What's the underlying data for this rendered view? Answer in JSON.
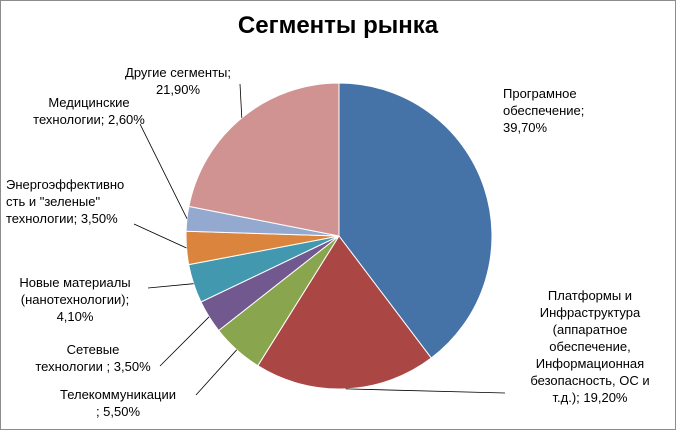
{
  "chart_data": {
    "type": "pie",
    "title": "Сегменты рынка",
    "slices": [
      {
        "name": "Програмное обеспечение",
        "value": 39.7,
        "label": "Програмное\nобеспечение;\n39,70%",
        "color": "#4572a7"
      },
      {
        "name": "Платформы и Инфраструктура (аппаратное обеспечение, Информационная безопасность, ОС и т.д.)",
        "value": 19.2,
        "label": "Платформы и\nИнфраструктура\n(аппаратное\nобеспечение,\nИнформационная\nбезопасность, ОС и\nт.д.); 19,20%",
        "color": "#aa4643"
      },
      {
        "name": "Телекоммуникации",
        "value": 5.5,
        "label": "Телекоммуникации\n; 5,50%",
        "color": "#89a54e"
      },
      {
        "name": "Сетевые технологии",
        "value": 3.5,
        "label": "Сетевые\nтехнологии ; 3,50%",
        "color": "#71588f"
      },
      {
        "name": "Новые материалы (нанотехнологии)",
        "value": 4.1,
        "label": "Новые материалы\n(нанотехнологии);\n4,10%",
        "color": "#4198af"
      },
      {
        "name": "Энергоэффективность и \"зеленые\" технологии",
        "value": 3.5,
        "label": "Энергоэффективно\nсть и \"зеленые\"\nтехнологии; 3,50%",
        "color": "#db843d"
      },
      {
        "name": "Медицинские технологии",
        "value": 2.6,
        "label": "Медицинские\nтехнологии; 2,60%",
        "color": "#93a9cf"
      },
      {
        "name": "Другие сегменты",
        "value": 21.9,
        "label": "Другие сегменты;\n21,90%",
        "color": "#d19392"
      }
    ]
  }
}
